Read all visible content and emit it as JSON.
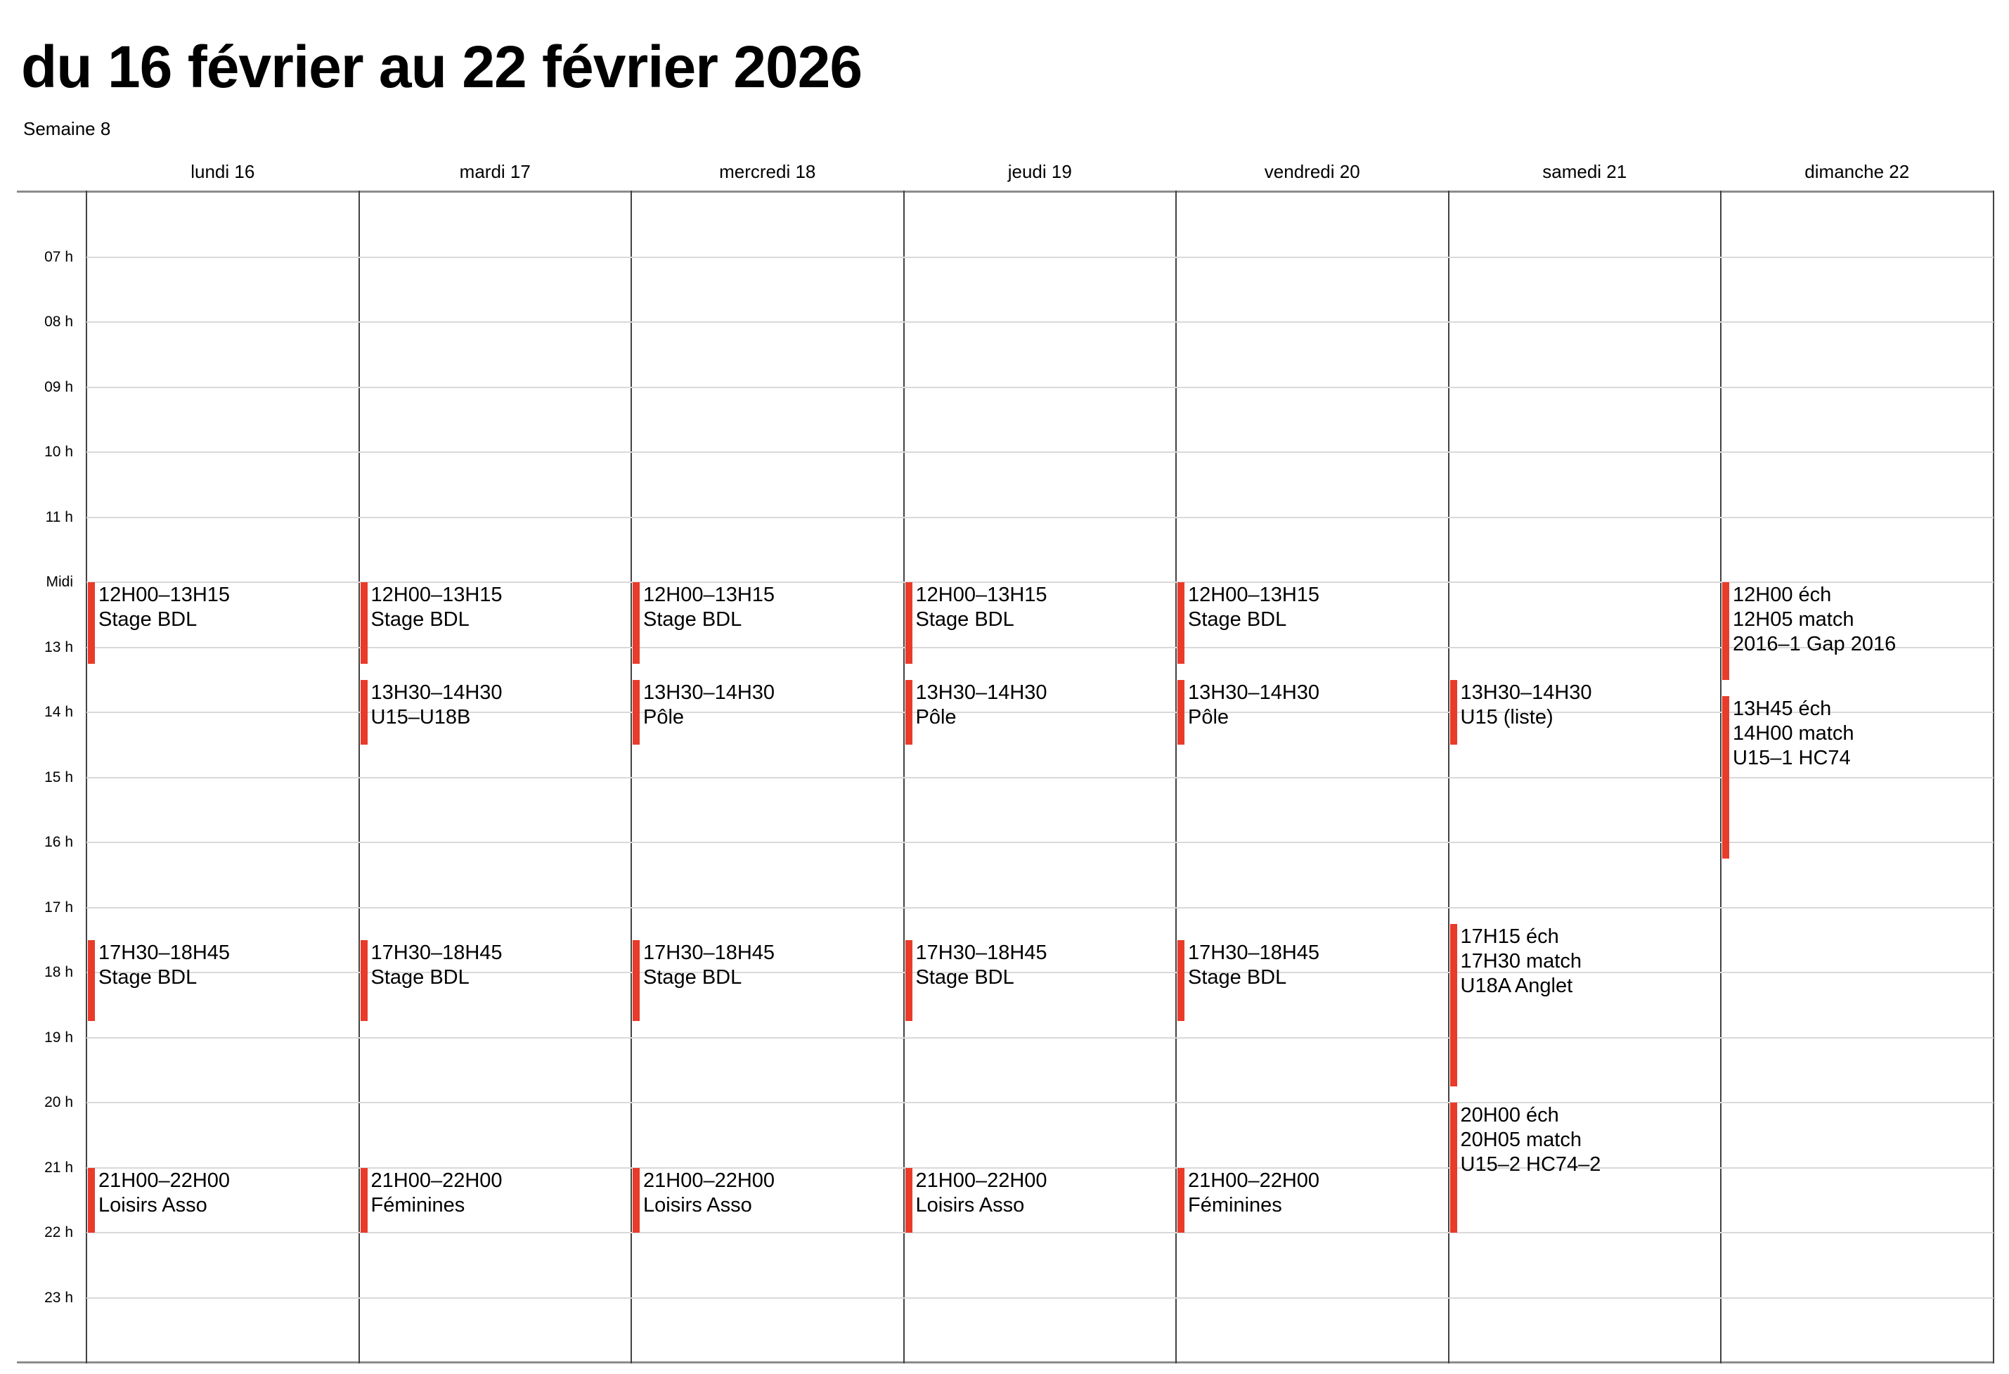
{
  "header": {
    "title": "du 16 février au 22 février 2026",
    "week_label": "Semaine 8"
  },
  "colors": {
    "event_red": "#e93b2a",
    "grid_line": "#d9d9d9",
    "column_line": "#424242",
    "outer_border": "#8c8c8c"
  },
  "days": [
    "lundi 16",
    "mardi 17",
    "mercredi 18",
    "jeudi 19",
    "vendredi 20",
    "samedi 21",
    "dimanche 22"
  ],
  "hours": [
    "07 h",
    "08 h",
    "09 h",
    "10 h",
    "11 h",
    "Midi",
    "13 h",
    "14 h",
    "15 h",
    "16 h",
    "17 h",
    "18 h",
    "19 h",
    "20 h",
    "21 h",
    "22 h",
    "23 h"
  ],
  "events": [
    {
      "day": 0,
      "start": 12,
      "end": 13.25,
      "lines": [
        "12H00–13H15",
        "Stage BDL"
      ]
    },
    {
      "day": 0,
      "start": 17.5,
      "end": 18.75,
      "lines": [
        "17H30–18H45",
        "Stage BDL"
      ]
    },
    {
      "day": 0,
      "start": 21,
      "end": 22,
      "lines": [
        "21H00–22H00",
        "Loisirs Asso"
      ]
    },
    {
      "day": 1,
      "start": 12,
      "end": 13.25,
      "lines": [
        "12H00–13H15",
        "Stage BDL"
      ]
    },
    {
      "day": 1,
      "start": 13.5,
      "end": 14.5,
      "lines": [
        "13H30–14H30",
        "U15–U18B"
      ]
    },
    {
      "day": 1,
      "start": 17.5,
      "end": 18.75,
      "lines": [
        "17H30–18H45",
        "Stage BDL"
      ]
    },
    {
      "day": 1,
      "start": 21,
      "end": 22,
      "lines": [
        "21H00–22H00",
        "Féminines"
      ]
    },
    {
      "day": 2,
      "start": 12,
      "end": 13.25,
      "lines": [
        "12H00–13H15",
        "Stage BDL"
      ]
    },
    {
      "day": 2,
      "start": 13.5,
      "end": 14.5,
      "lines": [
        "13H30–14H30",
        "Pôle"
      ]
    },
    {
      "day": 2,
      "start": 17.5,
      "end": 18.75,
      "lines": [
        "17H30–18H45",
        "Stage BDL"
      ]
    },
    {
      "day": 2,
      "start": 21,
      "end": 22,
      "lines": [
        "21H00–22H00",
        "Loisirs Asso"
      ]
    },
    {
      "day": 3,
      "start": 12,
      "end": 13.25,
      "lines": [
        "12H00–13H15",
        "Stage BDL"
      ]
    },
    {
      "day": 3,
      "start": 13.5,
      "end": 14.5,
      "lines": [
        "13H30–14H30",
        "Pôle"
      ]
    },
    {
      "day": 3,
      "start": 17.5,
      "end": 18.75,
      "lines": [
        "17H30–18H45",
        "Stage BDL"
      ]
    },
    {
      "day": 3,
      "start": 21,
      "end": 22,
      "lines": [
        "21H00–22H00",
        "Loisirs Asso"
      ]
    },
    {
      "day": 4,
      "start": 12,
      "end": 13.25,
      "lines": [
        "12H00–13H15",
        "Stage BDL"
      ]
    },
    {
      "day": 4,
      "start": 13.5,
      "end": 14.5,
      "lines": [
        "13H30–14H30",
        "Pôle"
      ]
    },
    {
      "day": 4,
      "start": 17.5,
      "end": 18.75,
      "lines": [
        "17H30–18H45",
        "Stage BDL"
      ]
    },
    {
      "day": 4,
      "start": 21,
      "end": 22,
      "lines": [
        "21H00–22H00",
        "Féminines"
      ]
    },
    {
      "day": 5,
      "start": 13.5,
      "end": 14.5,
      "lines": [
        "13H30–14H30",
        "U15 (liste)"
      ]
    },
    {
      "day": 5,
      "start": 17.25,
      "end": 19.75,
      "lines": [
        "17H15 éch",
        "17H30 match",
        "U18A Anglet"
      ]
    },
    {
      "day": 5,
      "start": 20,
      "end": 22,
      "lines": [
        "20H00 éch",
        "20H05 match",
        "U15–2 HC74–2"
      ]
    },
    {
      "day": 6,
      "start": 12,
      "end": 13.5,
      "lines": [
        "12H00 éch",
        "12H05 match",
        "2016–1 Gap 2016"
      ]
    },
    {
      "day": 6,
      "start": 13.75,
      "end": 16.25,
      "lines": [
        "13H45 éch",
        "14H00 match",
        "U15–1 HC74"
      ]
    }
  ]
}
